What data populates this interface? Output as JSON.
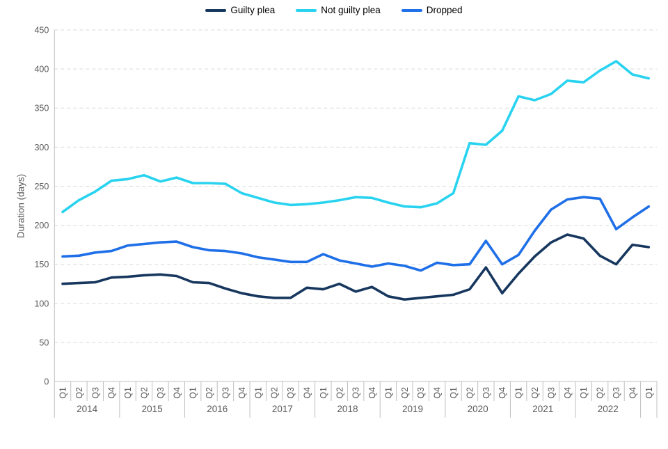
{
  "chart_data": {
    "type": "line",
    "title": "",
    "ylabel": "Duration (days)",
    "ylim": [
      0,
      450
    ],
    "ytick_step": 50,
    "grid": "horizontal-dashed",
    "legend_position": "top-center",
    "x_groups": [
      {
        "year": "2014",
        "quarters": [
          "Q1",
          "Q2",
          "Q3",
          "Q4"
        ]
      },
      {
        "year": "2015",
        "quarters": [
          "Q1",
          "Q2",
          "Q3",
          "Q4"
        ]
      },
      {
        "year": "2016",
        "quarters": [
          "Q1",
          "Q2",
          "Q3",
          "Q4"
        ]
      },
      {
        "year": "2017",
        "quarters": [
          "Q1",
          "Q2",
          "Q3",
          "Q4"
        ]
      },
      {
        "year": "2018",
        "quarters": [
          "Q1",
          "Q2",
          "Q3",
          "Q4"
        ]
      },
      {
        "year": "2019",
        "quarters": [
          "Q1",
          "Q2",
          "Q3",
          "Q4"
        ]
      },
      {
        "year": "2020",
        "quarters": [
          "Q1",
          "Q2",
          "Q3",
          "Q4"
        ]
      },
      {
        "year": "2021",
        "quarters": [
          "Q1",
          "Q2",
          "Q3",
          "Q4"
        ]
      },
      {
        "year": "2022",
        "quarters": [
          "Q1",
          "Q2",
          "Q3",
          "Q4"
        ]
      },
      {
        "year": "",
        "quarters": [
          "Q1"
        ]
      }
    ],
    "series": [
      {
        "name": "Guilty plea",
        "color": "#17375E",
        "values": [
          125,
          126,
          127,
          133,
          134,
          136,
          137,
          135,
          127,
          126,
          119,
          113,
          109,
          107,
          107,
          120,
          118,
          125,
          115,
          121,
          109,
          105,
          107,
          109,
          111,
          118,
          146,
          113,
          138,
          160,
          178,
          188,
          183,
          161,
          150,
          175,
          172
        ]
      },
      {
        "name": "Not guilty plea",
        "color": "#29D3F0",
        "values": [
          217,
          232,
          243,
          257,
          259,
          264,
          256,
          261,
          254,
          254,
          253,
          241,
          235,
          229,
          226,
          227,
          229,
          232,
          236,
          235,
          229,
          224,
          223,
          228,
          241,
          305,
          303,
          321,
          365,
          360,
          368,
          385,
          383,
          398,
          410,
          393,
          388
        ]
      },
      {
        "name": "Dropped",
        "color": "#1F6FE8",
        "values": [
          160,
          161,
          165,
          167,
          174,
          176,
          178,
          179,
          172,
          168,
          167,
          164,
          159,
          156,
          153,
          153,
          163,
          155,
          151,
          147,
          151,
          148,
          142,
          152,
          149,
          150,
          180,
          150,
          162,
          193,
          220,
          233,
          236,
          234,
          195,
          210,
          224
        ]
      }
    ],
    "axis_colors": {
      "axis_line": "#bfbfbf",
      "gridline": "#d9d9d9",
      "tick_label": "#595959"
    }
  }
}
